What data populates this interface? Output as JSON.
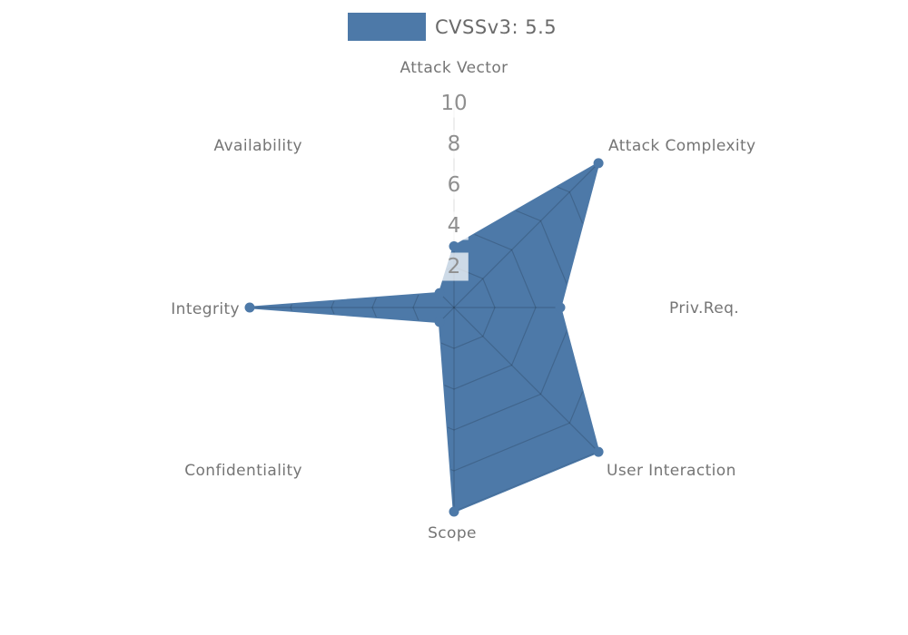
{
  "legend": {
    "label": "CVSSv3: 5.5",
    "swatch_color": "#4d79a8"
  },
  "chart_data": {
    "type": "radar",
    "title": "",
    "categories": [
      "Attack Vector",
      "Attack Complexity",
      "Priv.Req.",
      "User Interaction",
      "Scope",
      "Confidentiality",
      "Integrity",
      "Availability"
    ],
    "series": [
      {
        "name": "CVSSv3: 5.5",
        "values": [
          3,
          10,
          5.2,
          10,
          10,
          1,
          10,
          1
        ],
        "color": "#4d79a8",
        "fill_opacity": 1,
        "marker": "circle"
      }
    ],
    "rlim": [
      0,
      10
    ],
    "rticks": [
      2,
      4,
      6,
      8,
      10
    ],
    "start_angle_deg": 90,
    "direction": "clockwise",
    "grid_shape": "polygon",
    "grid_visible_inside_fill_only": true,
    "legend_position": "top-center",
    "colors": {
      "fill": "#4d79a8",
      "grid_line": "rgba(0,0,0,0.16)",
      "radial_axis_line": "#e2e2e2",
      "tick_label": "#8f8f8f",
      "tick_label_bg": "rgba(255,255,255,0.72)",
      "axis_label": "#757575",
      "legend_text": "#6a6a6a",
      "background": "#ffffff"
    }
  }
}
